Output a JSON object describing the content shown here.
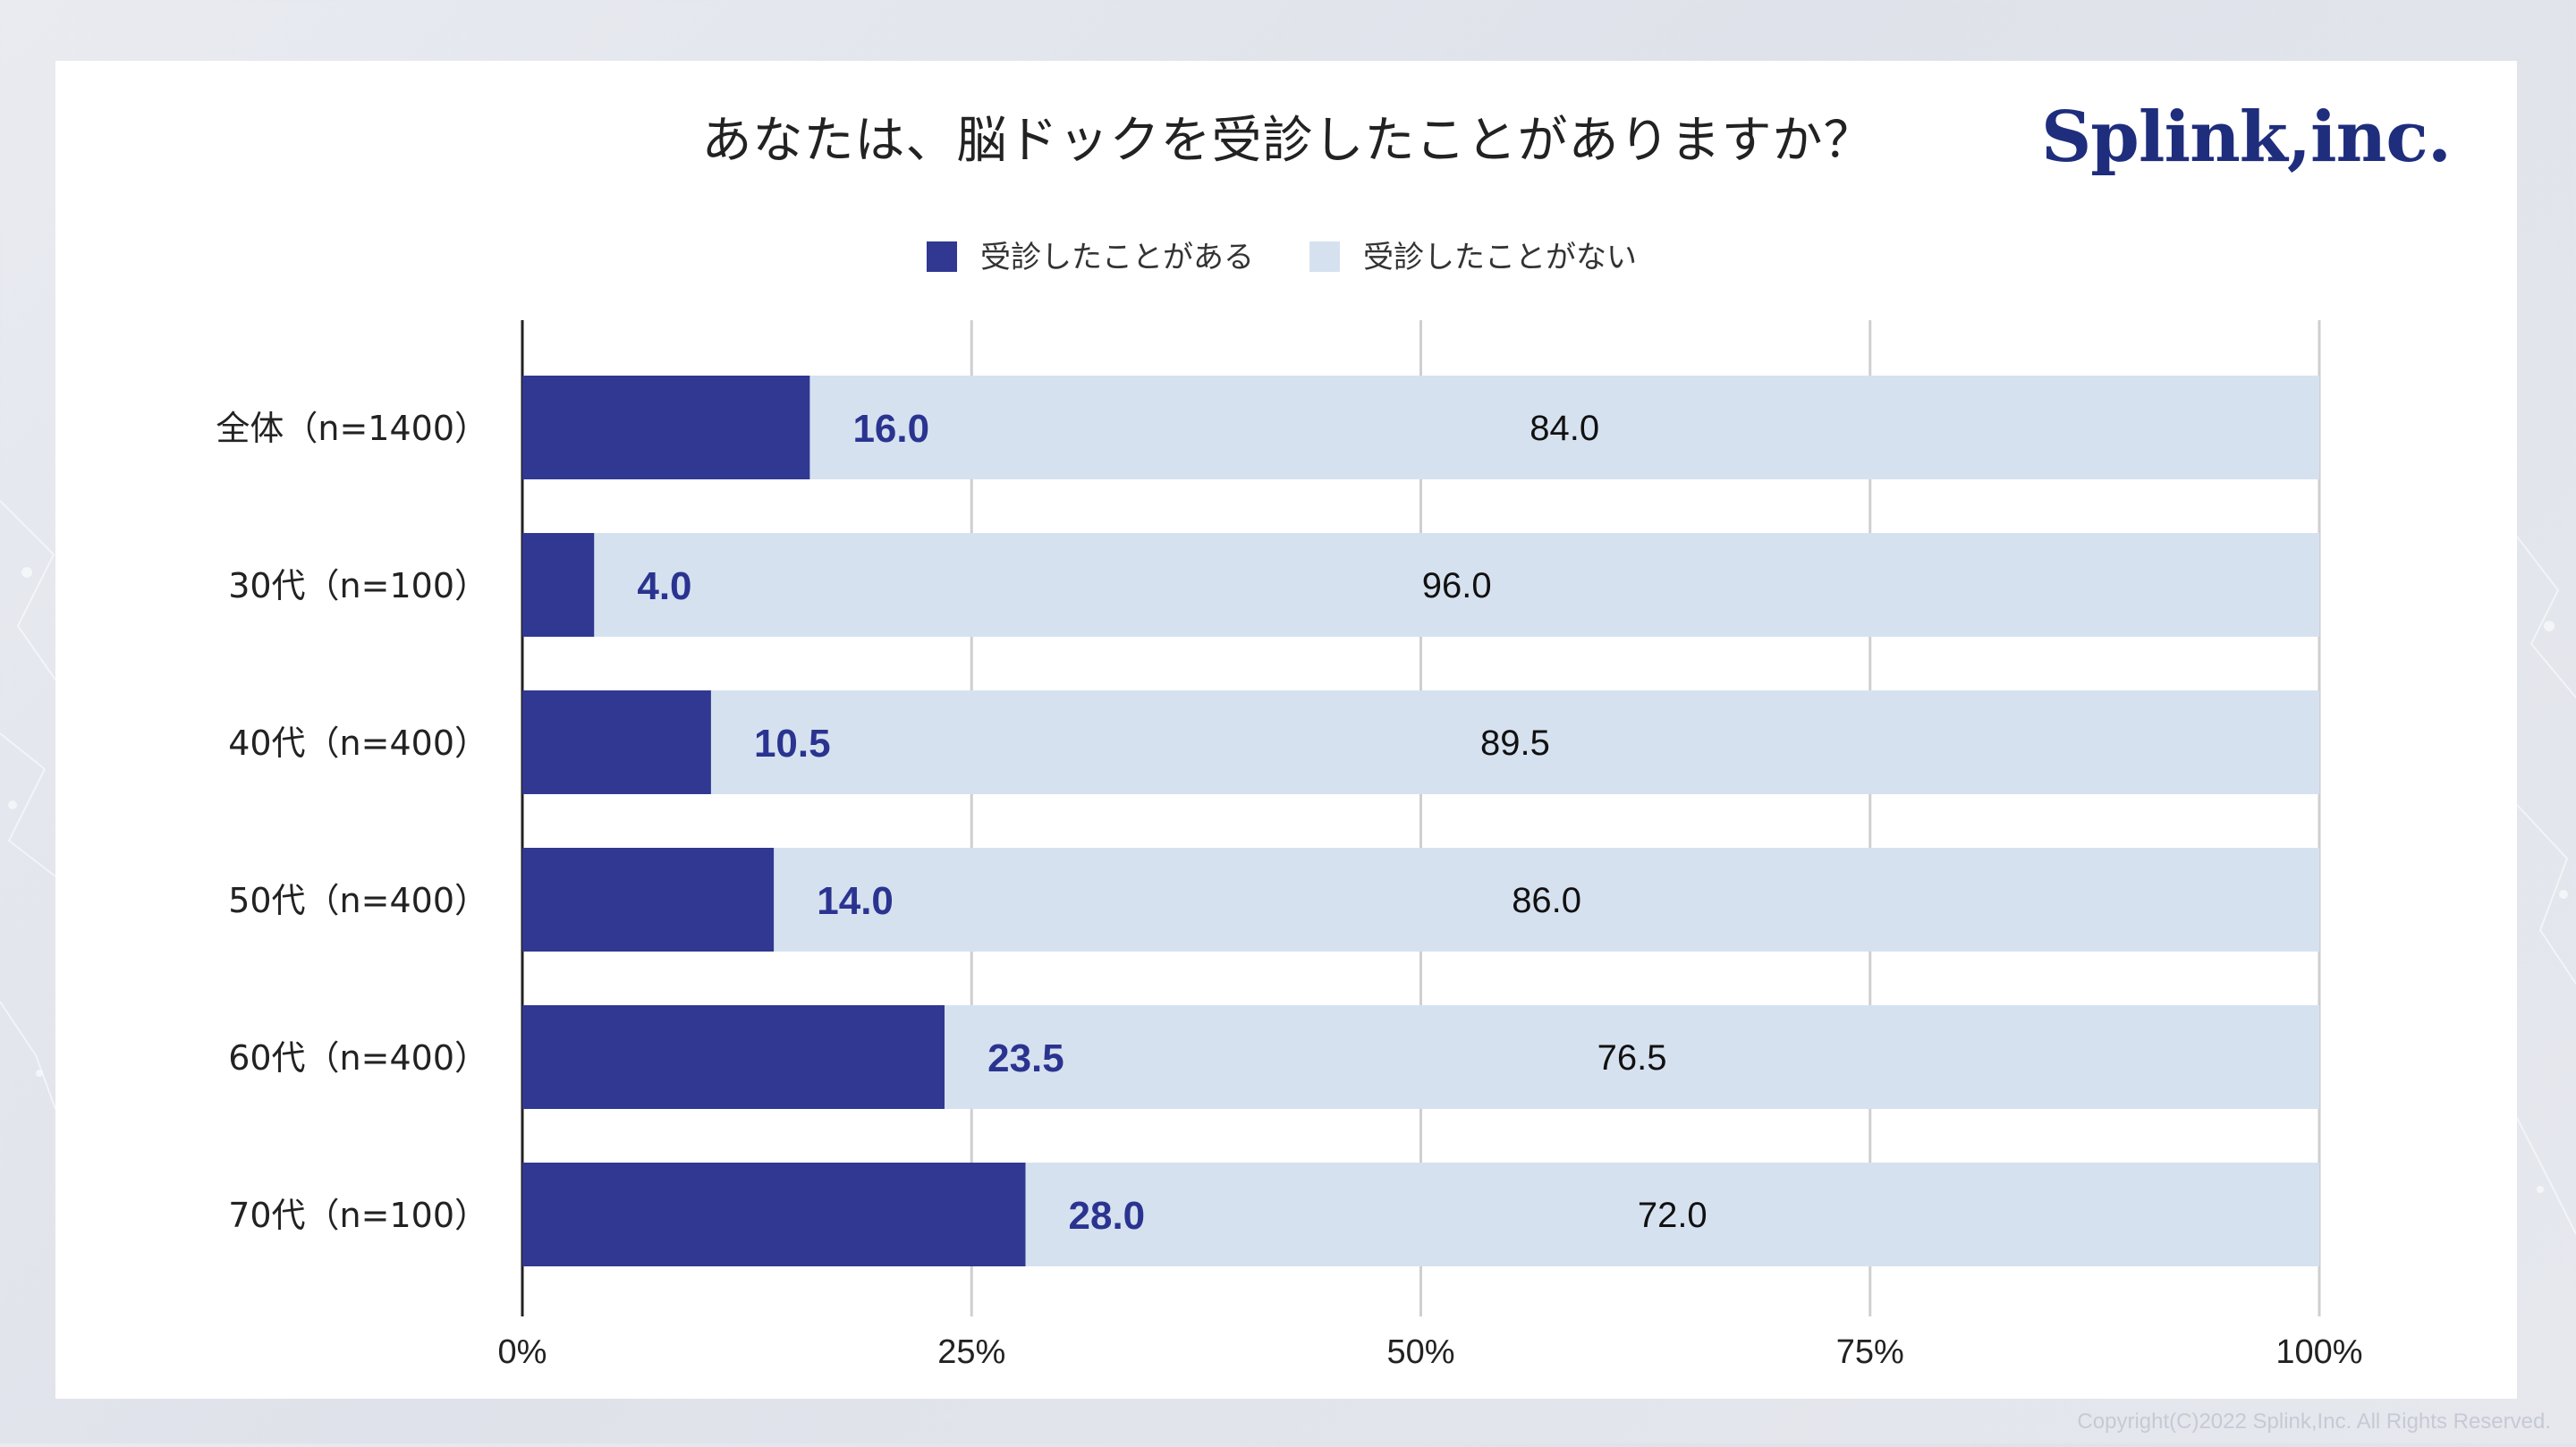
{
  "title": "あなたは、脳ドックを受診したことがありますか？",
  "logo": "Splink,inc.",
  "copyright": "Copyright(C)2022 Splink,Inc. All Rights Reserved.",
  "chart_data": {
    "type": "bar",
    "orientation": "horizontal",
    "stacked": true,
    "title": "あなたは、脳ドックを受診したことがありますか？",
    "categories": [
      "全体（n=1400）",
      "30代（n=100）",
      "40代（n=400）",
      "50代（n=400）",
      "60代（n=400）",
      "70代（n=100）"
    ],
    "series": [
      {
        "name": "受診したことがある",
        "values": [
          16.0,
          4.0,
          10.5,
          14.0,
          23.5,
          28.0
        ],
        "color": "#303891",
        "label_color": "#2a3490"
      },
      {
        "name": "受診したことがない",
        "values": [
          84.0,
          96.0,
          89.5,
          86.0,
          76.5,
          72.0
        ],
        "color": "#d6e1f0",
        "label_color": "#111111"
      }
    ],
    "xlim": [
      0,
      100
    ],
    "xticks": [
      "0%",
      "25%",
      "50%",
      "75%",
      "100%"
    ],
    "legend_position": "top-center",
    "grid": true
  }
}
